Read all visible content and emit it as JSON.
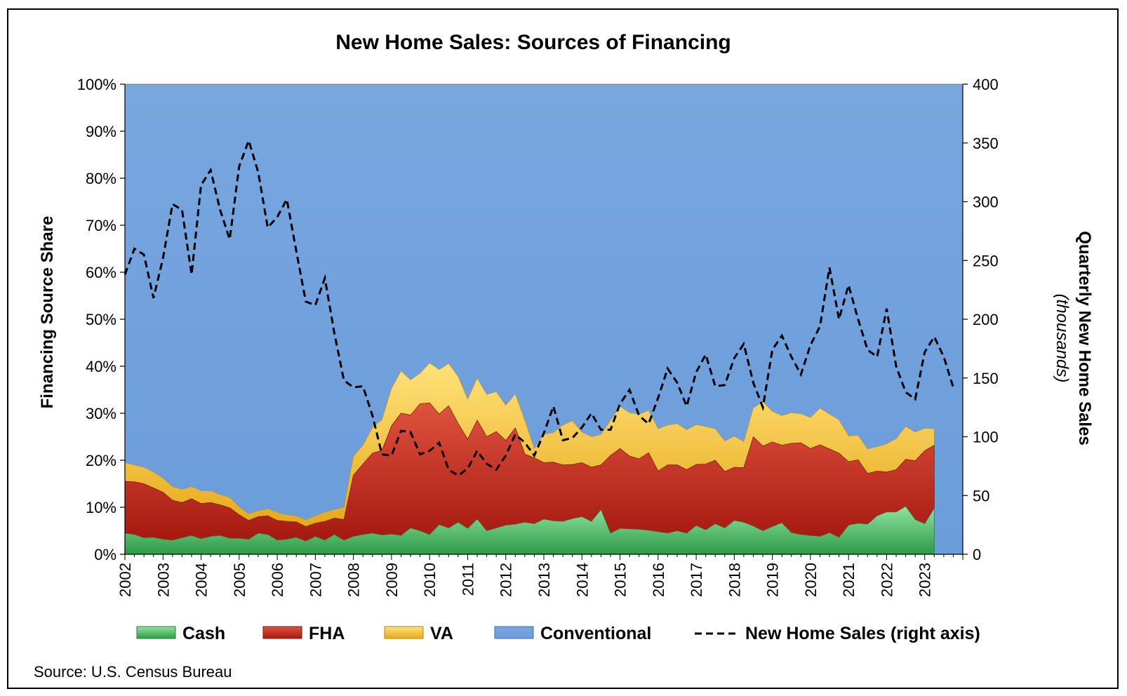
{
  "chart_data": {
    "type": "area",
    "title": "New Home Sales: Sources of Financing",
    "ylabel": "Financing Source Share",
    "y2label": "Quarterly New Home Sales",
    "y2label_unit": "(thousands)",
    "ylim": [
      0,
      100
    ],
    "y2lim": [
      0,
      400
    ],
    "y_ticks": [
      "0%",
      "10%",
      "20%",
      "30%",
      "40%",
      "50%",
      "60%",
      "70%",
      "80%",
      "90%",
      "100%"
    ],
    "y2_ticks": [
      "0",
      "50",
      "100",
      "150",
      "200",
      "250",
      "300",
      "350",
      "400"
    ],
    "x_ticks": [
      "2002",
      "2003",
      "2004",
      "2005",
      "2006",
      "2007",
      "2008",
      "2009",
      "2010",
      "2011",
      "2012",
      "2013",
      "2014",
      "2015",
      "2016",
      "2017",
      "2018",
      "2019",
      "2020",
      "2021",
      "2022",
      "2023"
    ],
    "x_start": 2002,
    "x_step": 0.25,
    "stacked": true,
    "legend_position": "bottom",
    "series": [
      {
        "name": "Cash",
        "color": "#4CB963",
        "values": [
          4.5,
          4.2,
          3.5,
          3.6,
          3.2,
          3.0,
          3.5,
          4.0,
          3.3,
          3.8,
          4.0,
          3.4,
          3.4,
          3.2,
          4.5,
          4.2,
          3.0,
          3.2,
          3.6,
          2.8,
          3.8,
          3.0,
          4.2,
          3.0,
          3.8,
          4.2,
          4.5,
          4.1,
          4.3,
          4.0,
          5.6,
          5.0,
          4.2,
          6.3,
          5.6,
          6.8,
          5.5,
          7.5,
          5.0,
          5.6,
          6.2,
          6.4,
          6.8,
          6.5,
          7.5,
          7.1,
          7.0,
          7.6,
          8.0,
          7.0,
          9.5,
          4.5,
          5.5,
          5.4,
          5.3,
          5.1,
          4.8,
          4.5,
          5.0,
          4.5,
          6.1,
          5.2,
          6.5,
          5.6,
          7.2,
          6.8,
          6.0,
          5.0,
          5.9,
          6.7,
          4.6,
          4.2,
          4.0,
          3.8,
          4.6,
          3.6,
          6.2,
          6.6,
          6.4,
          8.2,
          9.0,
          9.0,
          10.2,
          7.4,
          6.5,
          9.8
        ]
      },
      {
        "name": "FHA",
        "color": "#C8281E",
        "values": [
          11.0,
          11.2,
          11.5,
          10.5,
          10.0,
          8.5,
          7.5,
          7.8,
          7.5,
          7.2,
          6.5,
          6.5,
          5.0,
          4.0,
          3.5,
          4.0,
          4.2,
          3.8,
          3.3,
          3.1,
          2.8,
          4.0,
          3.5,
          4.4,
          13.0,
          15.0,
          17.0,
          18.0,
          23.0,
          26.0,
          24.0,
          27.0,
          28.0,
          23.5,
          26.0,
          21.0,
          19.0,
          21.0,
          20.0,
          20.5,
          18.0,
          20.5,
          14.5,
          14.0,
          12.0,
          12.5,
          12.0,
          11.5,
          11.5,
          11.5,
          9.5,
          16.5,
          17.0,
          15.5,
          15.0,
          16.5,
          12.9,
          14.5,
          14.0,
          13.5,
          13.0,
          14.0,
          13.5,
          12.0,
          11.3,
          11.6,
          19.0,
          18.0,
          18.0,
          16.5,
          19.0,
          19.5,
          18.5,
          19.5,
          17.8,
          17.9,
          13.5,
          13.5,
          10.8,
          9.5,
          8.5,
          9.0,
          10.0,
          12.5,
          15.5,
          13.4
        ]
      },
      {
        "name": "VA",
        "color": "#F2C12E",
        "values": [
          4.0,
          3.6,
          3.5,
          3.4,
          3.0,
          2.9,
          2.8,
          2.6,
          2.7,
          2.5,
          2.2,
          2.2,
          1.7,
          1.4,
          1.3,
          1.5,
          1.7,
          1.4,
          1.3,
          1.4,
          1.6,
          2.0,
          1.8,
          2.6,
          4.0,
          4.0,
          5.5,
          6.5,
          8.0,
          9.0,
          7.5,
          6.5,
          8.5,
          9.5,
          9.0,
          10.0,
          8.5,
          9.0,
          9.0,
          8.5,
          7.5,
          7.2,
          7.2,
          2.0,
          6.0,
          6.3,
          8.5,
          9.3,
          6.5,
          6.5,
          6.5,
          7.5,
          9.0,
          9.2,
          9.5,
          9.0,
          9.0,
          8.5,
          8.8,
          8.5,
          8.5,
          8.0,
          6.7,
          6.5,
          6.6,
          5.6,
          6.1,
          9.5,
          6.5,
          6.3,
          6.5,
          6.2,
          6.6,
          7.8,
          7.4,
          7.1,
          5.5,
          5.2,
          5.2,
          5.2,
          6.0,
          6.6,
          7.0,
          6.1,
          4.8,
          3.5
        ]
      },
      {
        "name": "Conventional",
        "color": "#6FA0DC",
        "values": "remainder to 100%"
      },
      {
        "name": "New Home Sales (right axis)",
        "axis": "right",
        "style": "dashed",
        "color": "#000000",
        "values": [
          238,
          260,
          255,
          218,
          252,
          298,
          293,
          238,
          314,
          327,
          293,
          268,
          330,
          352,
          325,
          278,
          287,
          302,
          258,
          215,
          212,
          235,
          188,
          148,
          142,
          143,
          118,
          85,
          84,
          105,
          104,
          85,
          88,
          95,
          72,
          67,
          73,
          88,
          77,
          72,
          84,
          102,
          95,
          84,
          103,
          126,
          97,
          99,
          108,
          120,
          106,
          106,
          128,
          140,
          118,
          111,
          133,
          158,
          146,
          126,
          155,
          170,
          143,
          144,
          167,
          179,
          146,
          125,
          174,
          186,
          168,
          153,
          178,
          194,
          244,
          200,
          229,
          200,
          174,
          168,
          209,
          160,
          138,
          132,
          172,
          185,
          168,
          142
        ]
      }
    ]
  },
  "legend": {
    "cash": "Cash",
    "fha": "FHA",
    "va": "VA",
    "conventional": "Conventional",
    "sales": "New Home Sales (right axis)"
  },
  "source": "Source: U.S. Census Bureau"
}
